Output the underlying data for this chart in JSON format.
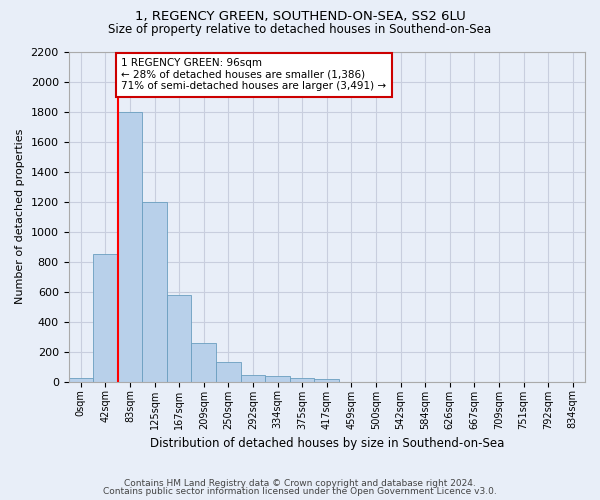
{
  "title1": "1, REGENCY GREEN, SOUTHEND-ON-SEA, SS2 6LU",
  "title2": "Size of property relative to detached houses in Southend-on-Sea",
  "xlabel": "Distribution of detached houses by size in Southend-on-Sea",
  "ylabel": "Number of detached properties",
  "bin_labels": [
    "0sqm",
    "42sqm",
    "83sqm",
    "125sqm",
    "167sqm",
    "209sqm",
    "250sqm",
    "292sqm",
    "334sqm",
    "375sqm",
    "417sqm",
    "459sqm",
    "500sqm",
    "542sqm",
    "584sqm",
    "626sqm",
    "667sqm",
    "709sqm",
    "751sqm",
    "792sqm",
    "834sqm"
  ],
  "bar_heights": [
    25,
    850,
    1800,
    1200,
    580,
    255,
    130,
    45,
    40,
    25,
    15,
    0,
    0,
    0,
    0,
    0,
    0,
    0,
    0,
    0,
    0
  ],
  "bar_color": "#b8d0ea",
  "bar_edge_color": "#6a9ec0",
  "red_line_x": 2,
  "annotation_text": "1 REGENCY GREEN: 96sqm\n← 28% of detached houses are smaller (1,386)\n71% of semi-detached houses are larger (3,491) →",
  "annotation_box_color": "#ffffff",
  "annotation_box_edge": "#cc0000",
  "ylim": [
    0,
    2200
  ],
  "yticks": [
    0,
    200,
    400,
    600,
    800,
    1000,
    1200,
    1400,
    1600,
    1800,
    2000,
    2200
  ],
  "footer1": "Contains HM Land Registry data © Crown copyright and database right 2024.",
  "footer2": "Contains public sector information licensed under the Open Government Licence v3.0.",
  "bg_color": "#e8eef8",
  "grid_color": "#c8cede"
}
